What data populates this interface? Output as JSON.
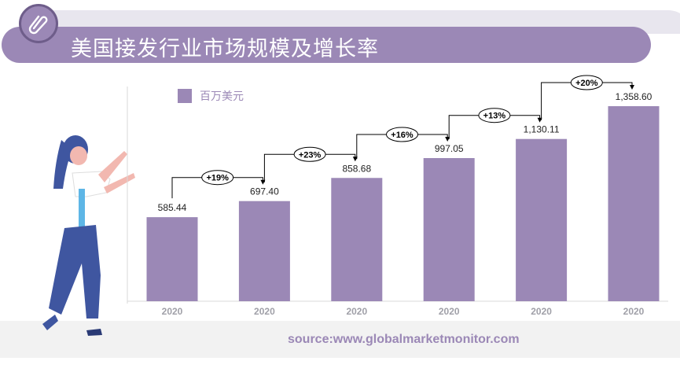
{
  "title": "美国接发行业市场规模及增长率",
  "source": "source:www.globalmarketmonitor.com",
  "colors": {
    "bar": "#9b88b6",
    "accent": "#6e5d8a"
  },
  "chart_data": {
    "type": "bar",
    "title": "美国接发行业市场规模及增长率",
    "legend": [
      "百万美元"
    ],
    "legend_position": "top-left",
    "categories": [
      "2020",
      "2020",
      "2020",
      "2020",
      "2020",
      "2020"
    ],
    "values": [
      585.44,
      697.4,
      858.68,
      997.05,
      1130.11,
      1358.6
    ],
    "value_labels": [
      "585.44",
      "697.40",
      "858.68",
      "997.05",
      "1,130.11",
      "1,358.60"
    ],
    "growth_labels": [
      "+19%",
      "+23%",
      "+16%",
      "+13%",
      "+20%"
    ],
    "ylim": [
      0,
      1358.6
    ],
    "unit": "百万美元"
  }
}
